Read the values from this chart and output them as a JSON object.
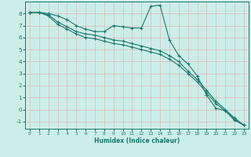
{
  "xlabel": "Humidex (Indice chaleur)",
  "background_color": "#cceee8",
  "grid_color": "#ddb8b8",
  "line_color": "#1a7a6e",
  "xlim": [
    -0.5,
    23.5
  ],
  "ylim": [
    -1.6,
    9.0
  ],
  "xticks": [
    0,
    1,
    2,
    3,
    4,
    5,
    6,
    7,
    8,
    9,
    10,
    11,
    12,
    13,
    14,
    15,
    16,
    17,
    18,
    19,
    20,
    21,
    22,
    23
  ],
  "yticks": [
    -1,
    0,
    1,
    2,
    3,
    4,
    5,
    6,
    7,
    8
  ],
  "line1_x": [
    0,
    1,
    2,
    3,
    4,
    5,
    6,
    7,
    8,
    9,
    10,
    11,
    12,
    13,
    14,
    15,
    16,
    17,
    18,
    19,
    20,
    21,
    22,
    23
  ],
  "line1_y": [
    8.1,
    8.1,
    8.0,
    7.8,
    7.5,
    7.0,
    6.7,
    6.5,
    6.5,
    7.0,
    6.9,
    6.8,
    6.8,
    8.6,
    8.7,
    5.8,
    4.5,
    3.8,
    2.8,
    1.2,
    0.1,
    -0.1,
    -0.9,
    -1.3
  ],
  "line2_x": [
    0,
    1,
    2,
    3,
    4,
    5,
    6,
    7,
    8,
    9,
    10,
    11,
    12,
    13,
    14,
    15,
    16,
    17,
    18,
    19,
    20,
    21,
    22,
    23
  ],
  "line2_y": [
    8.1,
    8.1,
    7.9,
    7.3,
    6.9,
    6.5,
    6.3,
    6.2,
    6.0,
    5.8,
    5.7,
    5.5,
    5.3,
    5.1,
    4.9,
    4.5,
    4.0,
    3.2,
    2.5,
    1.6,
    0.7,
    0.0,
    -0.7,
    -1.3
  ],
  "line3_x": [
    0,
    1,
    2,
    3,
    4,
    5,
    6,
    7,
    8,
    9,
    10,
    11,
    12,
    13,
    14,
    15,
    16,
    17,
    18,
    19,
    20,
    21,
    22,
    23
  ],
  "line3_y": [
    8.1,
    8.1,
    7.8,
    7.1,
    6.7,
    6.3,
    6.0,
    5.9,
    5.7,
    5.5,
    5.4,
    5.2,
    5.0,
    4.8,
    4.6,
    4.2,
    3.7,
    3.0,
    2.3,
    1.4,
    0.5,
    -0.1,
    -0.8,
    -1.3
  ]
}
